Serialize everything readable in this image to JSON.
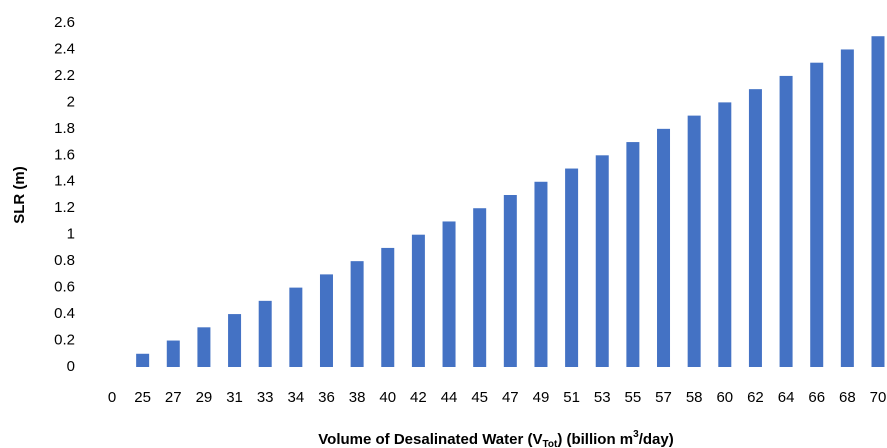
{
  "chart_data": {
    "type": "bar",
    "categories": [
      "0",
      "25",
      "27",
      "29",
      "31",
      "33",
      "34",
      "36",
      "38",
      "40",
      "42",
      "44",
      "45",
      "47",
      "49",
      "51",
      "53",
      "55",
      "57",
      "58",
      "60",
      "62",
      "64",
      "66",
      "68",
      "70"
    ],
    "values": [
      0,
      0.1,
      0.2,
      0.3,
      0.4,
      0.5,
      0.6,
      0.7,
      0.8,
      0.9,
      1,
      1.1,
      1.2,
      1.3,
      1.4,
      1.5,
      1.6,
      1.7,
      1.8,
      1.9,
      2,
      2.1,
      2.2,
      2.3,
      2.4,
      2.5
    ],
    "color": "#4472c4",
    "ylim": [
      0,
      2.6
    ],
    "yticks": [
      0,
      0.2,
      0.4,
      0.6,
      0.8,
      1,
      1.2,
      1.4,
      1.6,
      1.8,
      2,
      2.2,
      2.4,
      2.6
    ],
    "grid": false,
    "ylabel": "SLR (m)",
    "xlabel": [
      "Volume of Desalinated Water (V",
      "Tot",
      ") (billion m",
      "3",
      "/day)"
    ]
  }
}
